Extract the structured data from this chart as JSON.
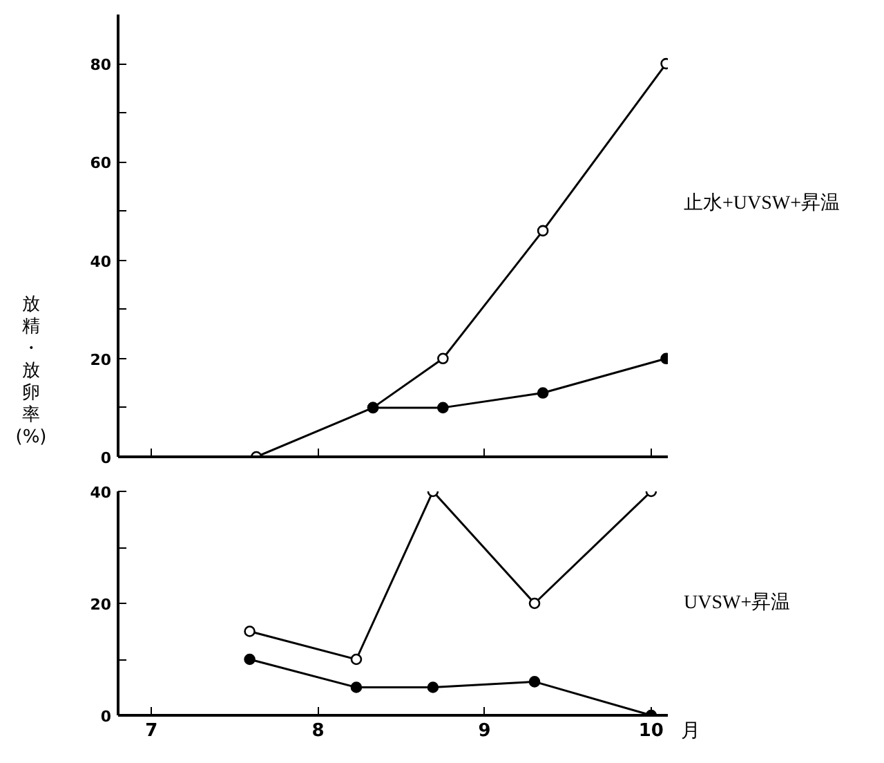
{
  "chart_data": [
    {
      "type": "line",
      "ylabel": "放精・放卵率(%)",
      "annotations": [
        "止水+UVSW+昇温"
      ],
      "xlim": [
        6.8,
        10.1
      ],
      "ylim": [
        0,
        90
      ],
      "yticks": [
        0,
        {
          "value": 10,
          "label": null
        },
        20,
        {
          "value": 30,
          "label": null
        },
        40,
        {
          "value": 50,
          "label": null
        },
        60,
        {
          "value": 70,
          "label": null
        },
        80
      ],
      "xticks": [
        7,
        8,
        9,
        10
      ],
      "tick_labels": "y",
      "marker": "circle",
      "grid": false,
      "series": [
        {
          "color": "#000000",
          "x": [
            7.63,
            8.33,
            8.75,
            9.35,
            10.09
          ],
          "values": [
            0,
            10,
            20,
            46,
            80
          ]
        },
        {
          "color": "#000000",
          "x": [
            8.33,
            8.75,
            9.35,
            10.09
          ],
          "values": [
            10,
            10,
            13,
            20
          ]
        }
      ]
    },
    {
      "type": "line",
      "xlabel": "月",
      "annotations": [
        "UVSW+昇温"
      ],
      "xlim": [
        6.8,
        10.1
      ],
      "ylim": [
        0,
        40
      ],
      "yticks": [
        0,
        {
          "value": 10,
          "label": null
        },
        20,
        {
          "value": 30,
          "label": null
        },
        40
      ],
      "xticks": [
        7,
        8,
        9,
        10
      ],
      "marker": "circle",
      "grid": false,
      "series": [
        {
          "color": "#000000",
          "x": [
            7.59,
            8.23,
            8.69,
            9.3,
            10.0
          ],
          "values": [
            15,
            10,
            40,
            20,
            40
          ]
        },
        {
          "color": "#000000",
          "x": [
            7.59,
            8.23,
            8.69,
            9.3,
            10.0
          ],
          "values": [
            10,
            5,
            5,
            6,
            0
          ]
        }
      ]
    }
  ]
}
